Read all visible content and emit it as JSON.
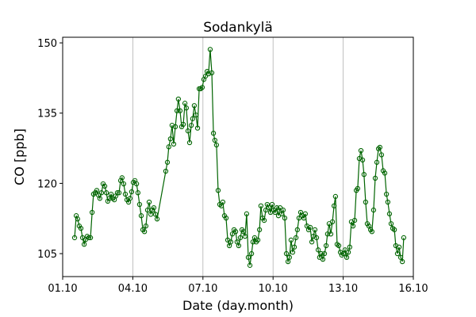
{
  "chart_data": {
    "type": "line",
    "title": "Sodankylä",
    "x_label": "Date (day.month)",
    "y_label": "CO [ppb]",
    "x": [
      1.51,
      1.58,
      1.64,
      1.71,
      1.78,
      1.85,
      1.92,
      1.98,
      2.05,
      2.12,
      2.19,
      2.26,
      2.32,
      2.39,
      2.46,
      2.53,
      2.59,
      2.66,
      2.73,
      2.8,
      2.87,
      2.93,
      3.0,
      3.07,
      3.14,
      3.21,
      3.27,
      3.34,
      3.41,
      3.48,
      3.54,
      3.61,
      3.68,
      3.75,
      3.82,
      3.88,
      3.95,
      4.02,
      4.09,
      4.16,
      4.22,
      4.29,
      4.36,
      4.43,
      4.5,
      4.56,
      4.63,
      4.7,
      4.77,
      4.83,
      4.9,
      4.97,
      5.04,
      5.41,
      5.48,
      5.54,
      5.61,
      5.68,
      5.75,
      5.82,
      5.89,
      5.95,
      6.02,
      6.09,
      6.16,
      6.23,
      6.29,
      6.36,
      6.43,
      6.5,
      6.56,
      6.63,
      6.7,
      6.77,
      6.84,
      6.9,
      6.97,
      7.04,
      7.11,
      7.18,
      7.24,
      7.31,
      7.38,
      7.45,
      7.51,
      7.58,
      7.65,
      7.72,
      7.79,
      7.85,
      7.92,
      7.99,
      8.06,
      8.13,
      8.19,
      8.26,
      8.33,
      8.4,
      8.46,
      8.53,
      8.6,
      8.67,
      8.74,
      8.8,
      8.87,
      8.94,
      9.01,
      9.08,
      9.14,
      9.21,
      9.28,
      9.35,
      9.42,
      9.48,
      9.55,
      9.62,
      9.69,
      9.75,
      9.82,
      9.89,
      9.96,
      10.03,
      10.09,
      10.16,
      10.23,
      10.3,
      10.37,
      10.43,
      10.5,
      10.57,
      10.64,
      10.7,
      10.77,
      10.84,
      10.91,
      10.98,
      11.04,
      11.11,
      11.18,
      11.25,
      11.32,
      11.38,
      11.45,
      11.52,
      11.59,
      11.66,
      11.72,
      11.79,
      11.86,
      11.93,
      11.99,
      12.06,
      12.13,
      12.2,
      12.27,
      12.33,
      12.4,
      12.47,
      12.54,
      12.61,
      12.67,
      12.74,
      12.81,
      12.88,
      12.94,
      13.01,
      13.08,
      13.15,
      13.22,
      13.28,
      13.35,
      13.42,
      13.49,
      13.56,
      13.62,
      13.69,
      13.76,
      13.83,
      13.89,
      13.96,
      14.03,
      14.1,
      14.17,
      14.23,
      14.3,
      14.37,
      14.44,
      14.51,
      14.57,
      14.64,
      14.71,
      14.78,
      14.85,
      14.91,
      14.98,
      15.05,
      15.12,
      15.19,
      15.25,
      15.32,
      15.39,
      15.46,
      15.53,
      15.59
    ],
    "series": [
      {
        "color": "#006400",
        "values": [
          108.4,
          113.1,
          112.4,
          110.9,
          110.4,
          108.4,
          107.0,
          108.0,
          108.7,
          108.4,
          108.4,
          113.8,
          117.7,
          118.0,
          118.5,
          117.5,
          116.8,
          118.0,
          119.9,
          119.4,
          118.0,
          116.2,
          116.8,
          117.7,
          116.8,
          116.5,
          117.3,
          118.0,
          118.0,
          120.6,
          121.2,
          119.9,
          117.7,
          116.5,
          116.0,
          116.8,
          118.2,
          120.2,
          120.6,
          119.9,
          118.0,
          115.5,
          113.1,
          110.1,
          109.7,
          110.9,
          114.3,
          116.0,
          113.4,
          114.3,
          114.8,
          113.4,
          112.4,
          122.6,
          124.5,
          127.8,
          129.5,
          132.4,
          128.4,
          132.1,
          135.5,
          138.0,
          135.5,
          132.1,
          132.6,
          137.1,
          136.1,
          131.2,
          128.7,
          132.4,
          133.8,
          136.6,
          134.6,
          131.8,
          140.2,
          140.2,
          140.5,
          142.2,
          142.9,
          143.9,
          143.4,
          148.6,
          143.6,
          130.7,
          129.2,
          128.2,
          118.5,
          115.5,
          115.2,
          116.0,
          113.1,
          112.6,
          107.9,
          106.7,
          107.5,
          109.2,
          110.1,
          109.7,
          107.5,
          106.7,
          108.4,
          110.1,
          109.7,
          108.7,
          113.5,
          104.2,
          102.5,
          105.0,
          107.5,
          108.4,
          107.5,
          107.9,
          110.1,
          115.2,
          112.6,
          112.1,
          114.3,
          115.5,
          114.8,
          113.8,
          115.5,
          114.3,
          113.8,
          114.8,
          113.1,
          114.8,
          113.5,
          114.3,
          112.6,
          105.0,
          103.3,
          104.2,
          107.9,
          105.3,
          106.4,
          108.4,
          110.1,
          112.6,
          113.8,
          113.1,
          112.6,
          113.5,
          110.9,
          110.1,
          110.6,
          107.5,
          108.7,
          110.1,
          108.4,
          105.8,
          104.2,
          105.0,
          103.8,
          105.0,
          106.7,
          109.2,
          111.4,
          109.2,
          111.8,
          115.2,
          117.2,
          107.0,
          106.7,
          105.3,
          104.7,
          105.0,
          105.8,
          104.2,
          105.3,
          106.4,
          111.8,
          110.9,
          112.1,
          118.5,
          118.9,
          125.3,
          127.0,
          125.0,
          121.9,
          116.0,
          111.4,
          110.9,
          110.1,
          109.7,
          114.3,
          121.1,
          124.5,
          127.4,
          127.7,
          126.1,
          122.7,
          122.2,
          117.7,
          116.0,
          113.5,
          111.4,
          110.4,
          110.1,
          106.7,
          105.0,
          106.4,
          104.2,
          103.3,
          108.4
        ]
      }
    ],
    "xlim": [
      1,
      16
    ],
    "xticks": [
      {
        "value": 1,
        "label": "01.10"
      },
      {
        "value": 4,
        "label": "04.10"
      },
      {
        "value": 7,
        "label": "07.10"
      },
      {
        "value": 10,
        "label": "10.10"
      },
      {
        "value": 13,
        "label": "13.10"
      },
      {
        "value": 16,
        "label": "16.10"
      }
    ],
    "ylim": [
      100.1,
      151.2
    ],
    "yticks": [
      105,
      120,
      135,
      150
    ],
    "grid": "x"
  }
}
